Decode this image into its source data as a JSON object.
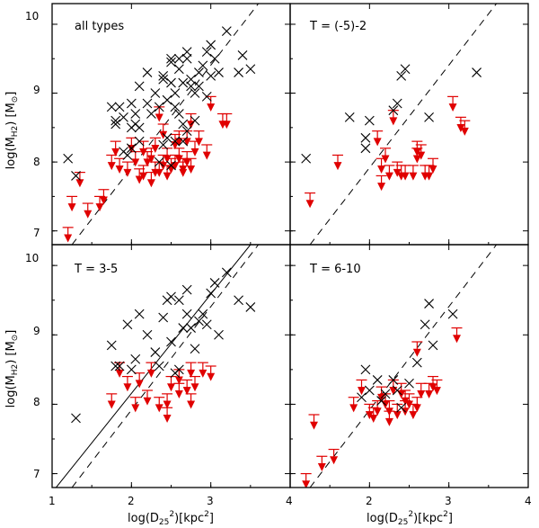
{
  "chart_data": {
    "type": "scatter",
    "layout": "2x2 grid with shared axes",
    "xlabel": "log(D25^2)[kpc^2]",
    "ylabel": "log(M_H2) [M_sun]",
    "xlim": [
      1,
      4
    ],
    "ylim": [
      6.8,
      10.3
    ],
    "xticks": [
      1,
      2,
      3,
      4
    ],
    "yticks": [
      7,
      8,
      9,
      10
    ],
    "x_tick_labels": [
      "1",
      "2",
      "3",
      "4"
    ],
    "y_tick_labels": [
      "7",
      "8",
      "9",
      "10"
    ],
    "x_tick_labels_right_panel": [
      "2",
      "3",
      "4"
    ],
    "series_legend": {
      "detections": "black X markers",
      "upper_limits": "red downward arrows"
    },
    "panels": [
      {
        "label": "all types",
        "dashed_line": [
          [
            1.25,
            6.8
          ],
          [
            3.6,
            10.3
          ]
        ],
        "detections": [
          [
            1.2,
            8.05
          ],
          [
            1.3,
            7.8
          ],
          [
            1.75,
            8.8
          ],
          [
            1.8,
            8.6
          ],
          [
            1.8,
            8.55
          ],
          [
            1.85,
            8.8
          ],
          [
            1.9,
            8.65
          ],
          [
            1.95,
            8.1
          ],
          [
            2.0,
            8.2
          ],
          [
            2.0,
            8.5
          ],
          [
            2.05,
            8.55
          ],
          [
            2.05,
            8.7
          ],
          [
            2.1,
            9.1
          ],
          [
            2.1,
            8.3
          ],
          [
            2.1,
            8.5
          ],
          [
            2.2,
            9.3
          ],
          [
            2.2,
            8.85
          ],
          [
            2.25,
            8.7
          ],
          [
            2.3,
            9.0
          ],
          [
            2.35,
            8.8
          ],
          [
            2.4,
            8.25
          ],
          [
            2.4,
            9.2
          ],
          [
            2.4,
            9.25
          ],
          [
            2.45,
            8.9
          ],
          [
            2.5,
            9.5
          ],
          [
            2.5,
            9.15
          ],
          [
            2.5,
            9.45
          ],
          [
            2.55,
            8.8
          ],
          [
            2.55,
            9.0
          ],
          [
            2.6,
            9.35
          ],
          [
            2.6,
            9.5
          ],
          [
            2.6,
            8.7
          ],
          [
            2.65,
            9.15
          ],
          [
            2.65,
            8.55
          ],
          [
            2.7,
            9.6
          ],
          [
            2.7,
            9.5
          ],
          [
            2.7,
            8.45
          ],
          [
            2.75,
            9.1
          ],
          [
            2.75,
            9.2
          ],
          [
            2.8,
            9.0
          ],
          [
            2.8,
            8.6
          ],
          [
            2.85,
            9.3
          ],
          [
            2.85,
            9.1
          ],
          [
            2.9,
            9.4
          ],
          [
            2.95,
            9.6
          ],
          [
            2.95,
            8.95
          ],
          [
            3.0,
            9.7
          ],
          [
            3.0,
            9.25
          ],
          [
            3.05,
            9.5
          ],
          [
            3.1,
            9.3
          ],
          [
            3.2,
            9.9
          ],
          [
            3.35,
            9.3
          ],
          [
            3.4,
            9.55
          ],
          [
            3.5,
            9.35
          ],
          [
            2.45,
            8.35
          ],
          [
            2.55,
            8.3
          ],
          [
            1.9,
            8.15
          ],
          [
            2.0,
            8.85
          ],
          [
            2.5,
            7.95
          ],
          [
            2.35,
            8.0
          ],
          [
            2.65,
            8.3
          ]
        ],
        "upper_limits": [
          [
            1.2,
            7.05
          ],
          [
            1.25,
            7.5
          ],
          [
            1.35,
            7.85
          ],
          [
            1.45,
            7.4
          ],
          [
            1.6,
            7.5
          ],
          [
            1.65,
            7.6
          ],
          [
            1.75,
            8.1
          ],
          [
            1.8,
            8.3
          ],
          [
            1.85,
            8.05
          ],
          [
            1.95,
            8.0
          ],
          [
            2.0,
            8.35
          ],
          [
            2.05,
            8.15
          ],
          [
            2.1,
            7.9
          ],
          [
            2.15,
            8.3
          ],
          [
            2.15,
            7.95
          ],
          [
            2.2,
            8.15
          ],
          [
            2.25,
            7.85
          ],
          [
            2.25,
            8.2
          ],
          [
            2.3,
            8.0
          ],
          [
            2.3,
            8.35
          ],
          [
            2.35,
            8.8
          ],
          [
            2.35,
            8.0
          ],
          [
            2.4,
            8.1
          ],
          [
            2.4,
            8.55
          ],
          [
            2.45,
            7.95
          ],
          [
            2.45,
            8.2
          ],
          [
            2.5,
            8.05
          ],
          [
            2.55,
            8.4
          ],
          [
            2.55,
            8.1
          ],
          [
            2.6,
            8.2
          ],
          [
            2.6,
            8.45
          ],
          [
            2.65,
            8.0
          ],
          [
            2.65,
            8.05
          ],
          [
            2.7,
            8.45
          ],
          [
            2.7,
            8.15
          ],
          [
            2.75,
            8.05
          ],
          [
            2.75,
            8.7
          ],
          [
            2.8,
            8.3
          ],
          [
            2.85,
            8.45
          ],
          [
            2.95,
            8.25
          ],
          [
            3.0,
            8.95
          ],
          [
            3.15,
            8.7
          ],
          [
            3.2,
            8.7
          ]
        ]
      },
      {
        "label": "T = (-5)-2",
        "dashed_line": [
          [
            1.25,
            6.8
          ],
          [
            3.6,
            10.3
          ]
        ],
        "detections": [
          [
            1.2,
            8.05
          ],
          [
            1.75,
            8.65
          ],
          [
            1.95,
            8.35
          ],
          [
            1.95,
            8.2
          ],
          [
            2.0,
            8.6
          ],
          [
            2.3,
            8.75
          ],
          [
            2.35,
            8.85
          ],
          [
            2.4,
            9.25
          ],
          [
            2.45,
            9.35
          ],
          [
            2.75,
            8.65
          ],
          [
            3.35,
            9.3
          ]
        ],
        "upper_limits": [
          [
            1.25,
            7.55
          ],
          [
            1.6,
            8.1
          ],
          [
            2.1,
            8.45
          ],
          [
            2.15,
            8.05
          ],
          [
            2.15,
            7.8
          ],
          [
            2.2,
            8.2
          ],
          [
            2.25,
            7.95
          ],
          [
            2.3,
            8.75
          ],
          [
            2.35,
            8.0
          ],
          [
            2.4,
            7.95
          ],
          [
            2.45,
            7.95
          ],
          [
            2.55,
            7.95
          ],
          [
            2.6,
            8.3
          ],
          [
            2.6,
            8.2
          ],
          [
            2.65,
            8.25
          ],
          [
            2.7,
            7.95
          ],
          [
            2.75,
            7.95
          ],
          [
            2.8,
            8.05
          ],
          [
            3.05,
            8.95
          ],
          [
            3.15,
            8.65
          ],
          [
            3.2,
            8.6
          ]
        ]
      },
      {
        "label": "T = 3-5",
        "dashed_line": [
          [
            1.25,
            6.8
          ],
          [
            3.6,
            10.3
          ]
        ],
        "solid_line": [
          [
            1.05,
            6.8
          ],
          [
            3.5,
            10.3
          ]
        ],
        "detections": [
          [
            1.3,
            7.8
          ],
          [
            1.75,
            8.85
          ],
          [
            1.8,
            8.55
          ],
          [
            1.85,
            8.55
          ],
          [
            1.95,
            9.15
          ],
          [
            2.0,
            8.5
          ],
          [
            2.05,
            8.65
          ],
          [
            2.1,
            9.3
          ],
          [
            2.2,
            9.0
          ],
          [
            2.3,
            8.75
          ],
          [
            2.35,
            8.55
          ],
          [
            2.4,
            9.25
          ],
          [
            2.45,
            9.5
          ],
          [
            2.5,
            9.55
          ],
          [
            2.5,
            8.9
          ],
          [
            2.55,
            8.45
          ],
          [
            2.6,
            8.5
          ],
          [
            2.6,
            9.5
          ],
          [
            2.65,
            9.1
          ],
          [
            2.7,
            9.65
          ],
          [
            2.7,
            9.3
          ],
          [
            2.75,
            9.1
          ],
          [
            2.8,
            8.8
          ],
          [
            2.85,
            9.2
          ],
          [
            2.9,
            9.3
          ],
          [
            2.95,
            9.15
          ],
          [
            3.0,
            9.6
          ],
          [
            3.05,
            9.75
          ],
          [
            3.1,
            9.0
          ],
          [
            3.2,
            9.9
          ],
          [
            3.35,
            9.5
          ],
          [
            3.5,
            9.4
          ]
        ],
        "upper_limits": [
          [
            1.75,
            8.15
          ],
          [
            1.85,
            8.6
          ],
          [
            1.95,
            8.4
          ],
          [
            2.05,
            8.1
          ],
          [
            2.1,
            8.45
          ],
          [
            2.2,
            8.2
          ],
          [
            2.25,
            8.6
          ],
          [
            2.35,
            8.1
          ],
          [
            2.45,
            8.15
          ],
          [
            2.45,
            7.95
          ],
          [
            2.5,
            8.4
          ],
          [
            2.6,
            8.5
          ],
          [
            2.6,
            8.3
          ],
          [
            2.7,
            8.35
          ],
          [
            2.75,
            8.6
          ],
          [
            2.75,
            8.15
          ],
          [
            2.8,
            8.4
          ],
          [
            2.9,
            8.6
          ],
          [
            3.0,
            8.55
          ]
        ]
      },
      {
        "label": "T = 6-10",
        "dashed_line": [
          [
            1.25,
            6.8
          ],
          [
            3.6,
            10.3
          ]
        ],
        "detections": [
          [
            1.9,
            8.1
          ],
          [
            1.95,
            8.5
          ],
          [
            2.0,
            8.2
          ],
          [
            2.1,
            8.35
          ],
          [
            2.15,
            8.05
          ],
          [
            2.2,
            8.15
          ],
          [
            2.3,
            8.35
          ],
          [
            2.35,
            8.2
          ],
          [
            2.4,
            7.95
          ],
          [
            2.5,
            8.3
          ],
          [
            2.6,
            8.6
          ],
          [
            2.7,
            9.15
          ],
          [
            2.75,
            9.45
          ],
          [
            2.8,
            8.85
          ],
          [
            3.05,
            9.3
          ]
        ],
        "upper_limits": [
          [
            1.2,
            7.0
          ],
          [
            1.3,
            7.85
          ],
          [
            1.4,
            7.25
          ],
          [
            1.55,
            7.35
          ],
          [
            1.8,
            8.1
          ],
          [
            1.9,
            8.35
          ],
          [
            2.0,
            8.0
          ],
          [
            2.05,
            7.95
          ],
          [
            2.1,
            8.05
          ],
          [
            2.15,
            8.25
          ],
          [
            2.2,
            8.15
          ],
          [
            2.25,
            8.05
          ],
          [
            2.25,
            7.9
          ],
          [
            2.3,
            8.35
          ],
          [
            2.35,
            8.0
          ],
          [
            2.4,
            8.3
          ],
          [
            2.45,
            8.2
          ],
          [
            2.45,
            8.05
          ],
          [
            2.5,
            8.15
          ],
          [
            2.55,
            8.0
          ],
          [
            2.6,
            8.1
          ],
          [
            2.6,
            8.9
          ],
          [
            2.65,
            8.3
          ],
          [
            2.75,
            8.3
          ],
          [
            2.8,
            8.4
          ],
          [
            2.85,
            8.35
          ],
          [
            3.1,
            9.1
          ]
        ]
      }
    ]
  }
}
